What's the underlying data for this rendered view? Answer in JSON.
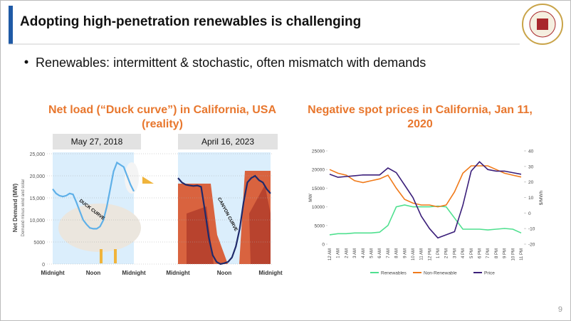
{
  "header": {
    "title": "Adopting high-penetration renewables is challenging"
  },
  "bullet": "Renewables: intermittent & stochastic, often mismatch with demands",
  "page_number": "9",
  "chart_data": [
    {
      "type": "line",
      "title": "Net load (“Duck curve”) in California, USA (reality)",
      "ylabel": "Net Demand (MW)",
      "ylabel_sub": "Demand minus wind and solar",
      "ylim": [
        0,
        25000
      ],
      "yticks": [
        0,
        {
          "value": 5000,
          "label": "5000"
        },
        {
          "value": 10000,
          "label": "10,000"
        },
        {
          "value": 15000,
          "label": "15,000"
        },
        {
          "value": 20000,
          "label": "20,000"
        },
        {
          "value": 25000,
          "label": "25,000"
        }
      ],
      "grid": true,
      "panels": [
        {
          "label": "May 27, 2018",
          "annotation": "DUCK CURVE",
          "color": "#5fb0e8",
          "xlim": [
            0,
            24
          ],
          "xticks": [
            {
              "value": 0,
              "label": "Midnight"
            },
            {
              "value": 12,
              "label": "Noon"
            },
            {
              "value": 24,
              "label": "Midnight"
            }
          ],
          "x": [
            0,
            1,
            2,
            3,
            4,
            5,
            6,
            7,
            8,
            9,
            10,
            11,
            12,
            13,
            14,
            15,
            16,
            17,
            18,
            19,
            20,
            21,
            22,
            23,
            24
          ],
          "values": [
            17000,
            16000,
            15500,
            15300,
            15500,
            16000,
            15800,
            14000,
            12000,
            10000,
            9000,
            8200,
            8000,
            8000,
            8500,
            10000,
            13000,
            17000,
            21000,
            23000,
            22500,
            22000,
            20000,
            18000,
            16500
          ]
        },
        {
          "label": "April 16, 2023",
          "annotation": "CANYON CURVE",
          "color": "#1f2a6b",
          "xlim": [
            0,
            24
          ],
          "xticks": [
            {
              "value": 0,
              "label": "Midnight"
            },
            {
              "value": 12,
              "label": "Noon"
            },
            {
              "value": 24,
              "label": "Midnight"
            }
          ],
          "x": [
            0,
            1,
            2,
            3,
            4,
            5,
            6,
            7,
            8,
            9,
            10,
            11,
            12,
            13,
            14,
            15,
            16,
            17,
            18,
            19,
            20,
            21,
            22,
            23,
            24
          ],
          "values": [
            19500,
            18500,
            18000,
            17800,
            17700,
            17800,
            17500,
            12000,
            6000,
            2000,
            500,
            0,
            200,
            500,
            1500,
            4000,
            8000,
            14000,
            18500,
            19500,
            20000,
            19000,
            18500,
            17000,
            16000
          ]
        }
      ]
    },
    {
      "type": "line",
      "title": "Negative spot prices in California, Jan 11, 2020",
      "ylabel": "MW",
      "y2label": "$/MWh",
      "ylim": [
        0,
        25000
      ],
      "yticks": [
        0,
        5000,
        10000,
        15000,
        20000,
        25000
      ],
      "y2lim": [
        -20,
        40
      ],
      "y2ticks": [
        -20,
        -10,
        0,
        10,
        20,
        30,
        40
      ],
      "grid": false,
      "categories": [
        "12 AM",
        "1 AM",
        "2 AM",
        "3 AM",
        "4 AM",
        "5 AM",
        "6 AM",
        "7 AM",
        "8 AM",
        "9 AM",
        "10 AM",
        "11 AM",
        "12 PM",
        "1 PM",
        "2 PM",
        "3 PM",
        "4 PM",
        "5 PM",
        "6 PM",
        "7 PM",
        "8 PM",
        "9 PM",
        "10 PM",
        "11 PM"
      ],
      "series": [
        {
          "name": "Renewables",
          "color": "#4fe08f",
          "values": [
            2500,
            2800,
            2800,
            3000,
            3000,
            3000,
            3200,
            5000,
            10000,
            10500,
            10000,
            10000,
            10000,
            10200,
            10000,
            7000,
            4000,
            4000,
            4000,
            3800,
            4000,
            4200,
            4000,
            3000
          ]
        },
        {
          "name": "Non-Renewable",
          "color": "#f07a1a",
          "values": [
            20000,
            19000,
            18500,
            17000,
            16500,
            17000,
            17500,
            18500,
            15000,
            12000,
            11000,
            10500,
            10500,
            10000,
            10500,
            14000,
            19000,
            21000,
            21000,
            21000,
            20000,
            19000,
            18500,
            18000
          ]
        },
        {
          "name": "Price",
          "color": "#3b1f7a",
          "axis": "y2",
          "values": [
            25,
            23,
            23.5,
            24,
            24.5,
            24.5,
            24.5,
            29,
            26,
            18,
            10,
            -2,
            -10,
            -16,
            -14,
            -12,
            5,
            27,
            33,
            28,
            27,
            27,
            26,
            25
          ]
        }
      ]
    }
  ]
}
